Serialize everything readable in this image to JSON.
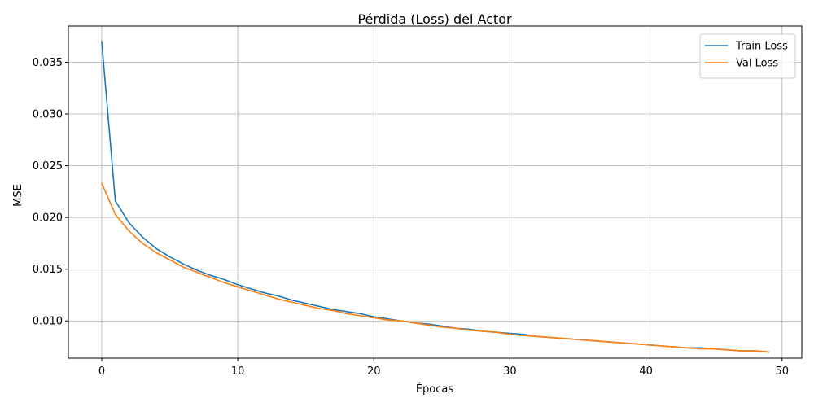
{
  "chart_data": {
    "type": "line",
    "title": "Pérdida (Loss) del Actor",
    "xlabel": "Épocas",
    "ylabel": "MSE",
    "xlim": [
      -2.45,
      51.45
    ],
    "ylim": [
      0.0064,
      0.0385
    ],
    "xticks": [
      0,
      10,
      20,
      30,
      40,
      50
    ],
    "xtick_labels": [
      "0",
      "10",
      "20",
      "30",
      "40",
      "50"
    ],
    "yticks": [
      0.01,
      0.015,
      0.02,
      0.025,
      0.03,
      0.035
    ],
    "ytick_labels": [
      "0.010",
      "0.015",
      "0.020",
      "0.025",
      "0.030",
      "0.035"
    ],
    "grid": true,
    "legend_position": "top-right",
    "x": [
      0,
      1,
      2,
      3,
      4,
      5,
      6,
      7,
      8,
      9,
      10,
      11,
      12,
      13,
      14,
      15,
      16,
      17,
      18,
      19,
      20,
      21,
      22,
      23,
      24,
      25,
      26,
      27,
      28,
      29,
      30,
      31,
      32,
      33,
      34,
      35,
      36,
      37,
      38,
      39,
      40,
      41,
      42,
      43,
      44,
      45,
      46,
      47,
      48,
      49
    ],
    "series": [
      {
        "name": "Train Loss",
        "color": "#1f77b4",
        "values": [
          0.037,
          0.0216,
          0.0195,
          0.0181,
          0.017,
          0.0162,
          0.0155,
          0.0149,
          0.0144,
          0.014,
          0.0135,
          0.0131,
          0.0127,
          0.0124,
          0.012,
          0.0117,
          0.0114,
          0.0111,
          0.0109,
          0.0107,
          0.0104,
          0.0102,
          0.01,
          0.0098,
          0.0097,
          0.0095,
          0.0093,
          0.0092,
          0.009,
          0.0089,
          0.0088,
          0.0087,
          0.0085,
          0.0084,
          0.0083,
          0.0082,
          0.0081,
          0.008,
          0.0079,
          0.0078,
          0.0077,
          0.0076,
          0.0075,
          0.0074,
          0.0074,
          0.0073,
          0.0072,
          0.0071,
          0.0071,
          0.007
        ]
      },
      {
        "name": "Val Loss",
        "color": "#ff7f0e",
        "values": [
          0.0233,
          0.0203,
          0.0187,
          0.0175,
          0.0166,
          0.0159,
          0.0152,
          0.0147,
          0.0142,
          0.0137,
          0.0133,
          0.0129,
          0.0125,
          0.0121,
          0.0118,
          0.0115,
          0.0112,
          0.011,
          0.0107,
          0.0105,
          0.0103,
          0.0101,
          0.01,
          0.0098,
          0.0096,
          0.0094,
          0.0093,
          0.0091,
          0.009,
          0.0089,
          0.0087,
          0.0086,
          0.0085,
          0.0084,
          0.0083,
          0.0082,
          0.0081,
          0.008,
          0.0079,
          0.0078,
          0.0077,
          0.0076,
          0.0075,
          0.0074,
          0.0073,
          0.0073,
          0.0072,
          0.0071,
          0.0071,
          0.007
        ]
      }
    ]
  }
}
